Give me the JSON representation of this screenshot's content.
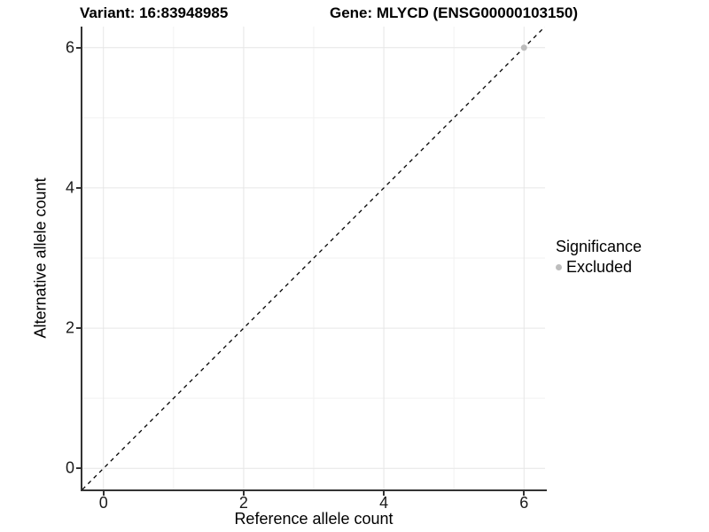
{
  "title": {
    "variant": "Variant: 16:83948985",
    "gene": "Gene: MLYCD (ENSG00000103150)"
  },
  "axes": {
    "x": {
      "label": "Reference allele count",
      "ticks": [
        "0",
        "2",
        "4",
        "6"
      ]
    },
    "y": {
      "label": "Alternative allele count",
      "ticks": [
        "0",
        "2",
        "4",
        "6"
      ]
    }
  },
  "legend": {
    "title": "Significance",
    "items": [
      {
        "label": "Excluded",
        "color": "#bdbdbd"
      }
    ]
  },
  "colors": {
    "background": "#ffffff",
    "axis_line": "#333333",
    "tick_label": "#1a1a1a",
    "grid_major": "#e6e6e6",
    "grid_minor": "#f2f2f2",
    "identity_line": "#000000",
    "excluded_point": "#bdbdbd"
  },
  "chart_data": {
    "type": "scatter",
    "title": "Variant: 16:83948985   Gene: MLYCD (ENSG00000103150)",
    "xlabel": "Reference allele count",
    "ylabel": "Alternative allele count",
    "xlim": [
      -0.3,
      6.3
    ],
    "ylim": [
      -0.3,
      6.3
    ],
    "x_ticks": [
      0,
      2,
      4,
      6
    ],
    "y_ticks": [
      0,
      2,
      4,
      6
    ],
    "x_minor_ticks": [
      1,
      3,
      5
    ],
    "y_minor_ticks": [
      1,
      3,
      5
    ],
    "grid": true,
    "legend_position": "right",
    "series": [
      {
        "name": "Excluded",
        "color": "#bdbdbd",
        "marker": "circle",
        "points": [
          {
            "x": 6,
            "y": 6
          }
        ]
      }
    ],
    "identity_line": {
      "style": "dashed",
      "color": "#000000",
      "from": [
        -0.3,
        -0.3
      ],
      "to": [
        6.3,
        6.3
      ]
    }
  }
}
